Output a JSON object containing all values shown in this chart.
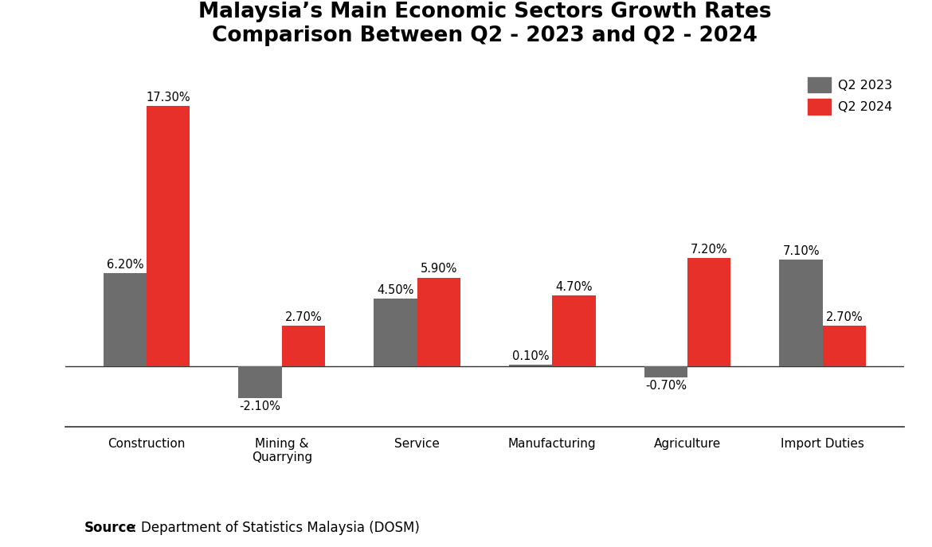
{
  "title_line1": "Malaysia’s Main Economic Sectors Growth Rates",
  "title_line2": "Comparison Between Q2 - 2023 and Q2 - 2024",
  "categories": [
    "Construction",
    "Mining &\nQuarrying",
    "Service",
    "Manufacturing",
    "Agriculture",
    "Import Duties"
  ],
  "q2_2023": [
    6.2,
    -2.1,
    4.5,
    0.1,
    -0.7,
    7.1
  ],
  "q2_2024": [
    17.3,
    2.7,
    5.9,
    4.7,
    7.2,
    2.7
  ],
  "color_2023": "#6d6d6d",
  "color_2024": "#e8302a",
  "legend_labels": [
    "Q2 2023",
    "Q2 2024"
  ],
  "source_bold": "Source",
  "source_rest": ": Department of Statistics Malaysia (DOSM)",
  "background_color": "#ffffff",
  "ylim": [
    -4,
    20
  ],
  "bar_width": 0.32,
  "title_fontsize": 19,
  "label_fontsize": 10.5,
  "tick_fontsize": 11,
  "source_fontsize": 12
}
